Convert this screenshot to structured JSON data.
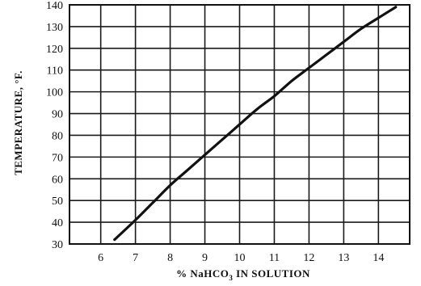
{
  "chart_data": {
    "type": "line",
    "xlabel": "% NaHCO3 IN SOLUTION",
    "xlabel_parts": {
      "pre": "% NaHCO",
      "sub": "3",
      "post": " IN SOLUTION"
    },
    "ylabel": "TEMPERATURE, °F.",
    "xlim": [
      5.1,
      14.9
    ],
    "ylim": [
      30,
      140
    ],
    "xticks": [
      6,
      7,
      8,
      9,
      10,
      11,
      12,
      13,
      14
    ],
    "yticks": [
      30,
      40,
      50,
      60,
      70,
      80,
      90,
      100,
      110,
      120,
      130,
      140
    ],
    "grid": true,
    "series": [
      {
        "x": [
          6.4,
          7.0,
          7.5,
          8.0,
          8.5,
          9.0,
          9.5,
          10.0,
          10.5,
          11.0,
          11.5,
          12.0,
          12.5,
          13.0,
          13.5,
          14.0,
          14.5
        ],
        "y": [
          32,
          41,
          49,
          57,
          64,
          71,
          78,
          85,
          92,
          98,
          105,
          111,
          117,
          123,
          129,
          134,
          139
        ]
      }
    ]
  }
}
